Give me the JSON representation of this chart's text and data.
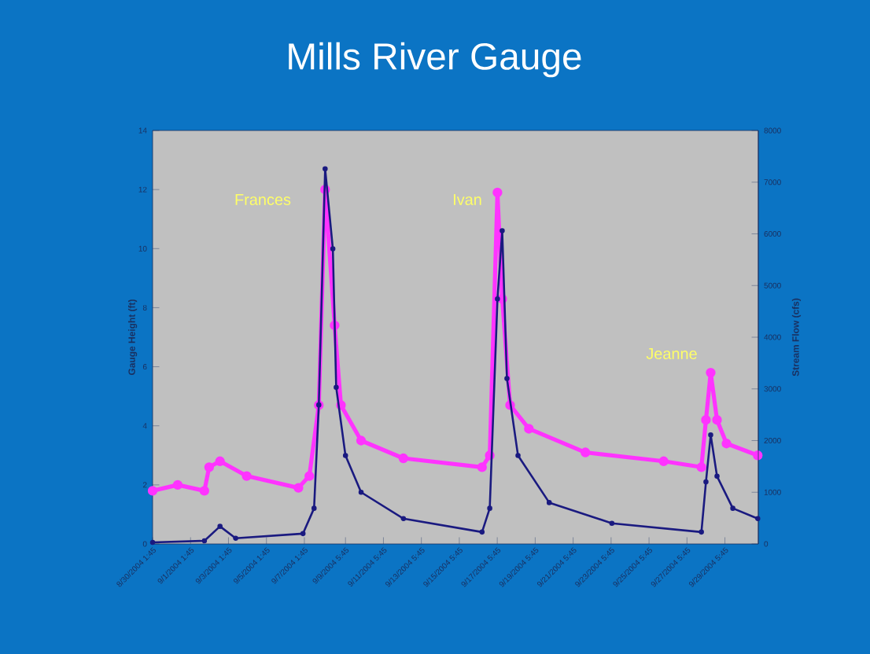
{
  "chart_data": {
    "type": "line",
    "title": "Mills River Gauge",
    "ylabel": "Gauge Height (ft)",
    "y2label": "Stream Flow (cfs)",
    "xlim": [
      "2004-08-30T01:45",
      "2004-10-01T00:00"
    ],
    "xticks": [
      {
        "value": "2004-08-30T01:45",
        "label": "8/30/2004 1:45"
      },
      {
        "value": "2004-09-01T01:45",
        "label": "9/1/2004 1:45"
      },
      {
        "value": "2004-09-03T01:45",
        "label": "9/3/2004 1:45"
      },
      {
        "value": "2004-09-05T01:45",
        "label": "9/5/2004 1:45"
      },
      {
        "value": "2004-09-07T01:45",
        "label": "9/7/2004 1:45"
      },
      {
        "value": "2004-09-09T05:45",
        "label": "9/9/2004 5:45"
      },
      {
        "value": "2004-09-11T05:45",
        "label": "9/11/2004 5:45"
      },
      {
        "value": "2004-09-13T05:45",
        "label": "9/13/2004 5:45"
      },
      {
        "value": "2004-09-15T05:45",
        "label": "9/15/2004 5:45"
      },
      {
        "value": "2004-09-17T05:45",
        "label": "9/17/2004 5:45"
      },
      {
        "value": "2004-09-19T05:45",
        "label": "9/19/2004 5:45"
      },
      {
        "value": "2004-09-21T05:45",
        "label": "9/21/2004 5:45"
      },
      {
        "value": "2004-09-23T05:45",
        "label": "9/23/2004 5:45"
      },
      {
        "value": "2004-09-25T05:45",
        "label": "9/25/2004 5:45"
      },
      {
        "value": "2004-09-27T05:45",
        "label": "9/27/2004 5:45"
      },
      {
        "value": "2004-09-29T05:45",
        "label": "9/29/2004 5:45"
      }
    ],
    "ylim": [
      0,
      14
    ],
    "yticks": [
      0,
      2,
      4,
      6,
      8,
      10,
      12,
      14
    ],
    "y2lim": [
      0,
      8000
    ],
    "y2ticks": [
      0,
      1000,
      2000,
      3000,
      4000,
      5000,
      6000,
      7000,
      8000
    ],
    "marker": "circle",
    "grid": false,
    "series": [
      {
        "color": "#ff33ff",
        "x": [
          "2004-08-30T01:45",
          "2004-08-31T09:30",
          "2004-09-01T19:15",
          "2004-09-02T01:15",
          "2004-09-02T15:00",
          "2004-09-04T00:45",
          "2004-09-06T18:15",
          "2004-09-07T08:00",
          "2004-09-07T20:00",
          "2004-09-08T04:00",
          "2004-09-08T16:00",
          "2004-09-09T00:00",
          "2004-09-10T01:30",
          "2004-09-12T07:00",
          "2004-09-16T10:30",
          "2004-09-16T20:15",
          "2004-09-17T06:00",
          "2004-09-17T12:00",
          "2004-09-17T22:00",
          "2004-09-18T21:45",
          "2004-09-21T21:15",
          "2004-09-26T00:15",
          "2004-09-28T00:00",
          "2004-09-28T05:45",
          "2004-09-28T11:45",
          "2004-09-28T19:45",
          "2004-09-29T07:45",
          "2004-09-30T23:15"
        ],
        "values": [
          1.8,
          2.0,
          1.8,
          2.6,
          2.8,
          2.3,
          1.9,
          2.3,
          4.7,
          12.0,
          7.4,
          4.7,
          3.5,
          2.9,
          2.6,
          3.0,
          11.9,
          8.3,
          4.7,
          3.9,
          3.1,
          2.8,
          2.6,
          4.2,
          5.8,
          4.2,
          3.4,
          3.0
        ]
      },
      {
        "color": "#1a1a80",
        "axis": "y2",
        "x": [
          "2004-08-30T01:45",
          "2004-09-01T19:15",
          "2004-09-02T15:00",
          "2004-09-03T10:45",
          "2004-09-07T00:00",
          "2004-09-07T14:00",
          "2004-09-07T20:00",
          "2004-09-08T04:00",
          "2004-09-08T13:45",
          "2004-09-08T18:00",
          "2004-09-09T05:45",
          "2004-09-10T01:30",
          "2004-09-12T07:00",
          "2004-09-16T10:30",
          "2004-09-16T20:15",
          "2004-09-17T06:00",
          "2004-09-17T12:00",
          "2004-09-17T18:00",
          "2004-09-18T08:00",
          "2004-09-19T23:30",
          "2004-09-23T06:45",
          "2004-09-28T00:00",
          "2004-09-28T05:45",
          "2004-09-28T11:45",
          "2004-09-28T19:45",
          "2004-09-29T15:45",
          "2004-09-30T23:15"
        ],
        "values": [
          30,
          60,
          340,
          110,
          200,
          690,
          2690,
          7260,
          5710,
          3030,
          1710,
          1000,
          490,
          230,
          690,
          4740,
          6060,
          3200,
          1710,
          800,
          400,
          230,
          1200,
          2110,
          1310,
          690,
          490
        ]
      }
    ],
    "annotations": [
      "Frances",
      "Ivan",
      "Jeanne"
    ]
  }
}
